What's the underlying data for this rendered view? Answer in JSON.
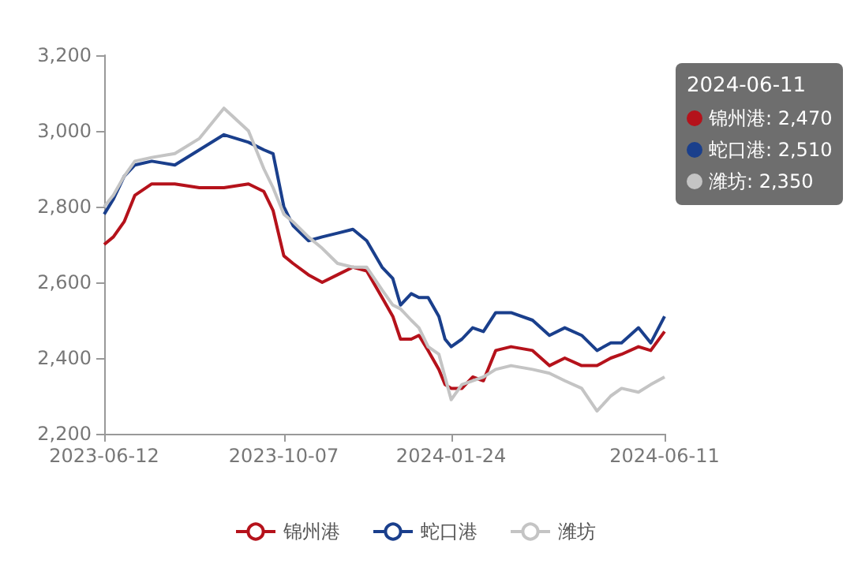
{
  "chart_data": {
    "type": "line",
    "x": [
      "2023-06-12",
      "2023-06-18",
      "2023-06-25",
      "2023-07-02",
      "2023-07-13",
      "2023-07-28",
      "2023-08-13",
      "2023-08-29",
      "2023-09-14",
      "2023-09-24",
      "2023-09-30",
      "2023-10-07",
      "2023-10-13",
      "2023-10-23",
      "2023-11-01",
      "2023-11-11",
      "2023-11-21",
      "2023-11-30",
      "2023-12-10",
      "2023-12-17",
      "2023-12-22",
      "2023-12-29",
      "2024-01-03",
      "2024-01-09",
      "2024-01-16",
      "2024-01-20",
      "2024-01-24",
      "2024-01-31",
      "2024-02-07",
      "2024-02-14",
      "2024-02-22",
      "2024-03-03",
      "2024-03-17",
      "2024-03-28",
      "2024-04-07",
      "2024-04-18",
      "2024-04-28",
      "2024-05-07",
      "2024-05-14",
      "2024-05-25",
      "2024-06-02",
      "2024-06-11"
    ],
    "series": [
      {
        "name": "锦州港",
        "color": "#b5121b",
        "values": [
          2700,
          2720,
          2760,
          2830,
          2860,
          2860,
          2850,
          2850,
          2860,
          2840,
          2790,
          2670,
          2650,
          2620,
          2600,
          2620,
          2640,
          2630,
          2560,
          2510,
          2450,
          2450,
          2460,
          2420,
          2370,
          2330,
          2320,
          2320,
          2350,
          2340,
          2420,
          2430,
          2420,
          2380,
          2400,
          2380,
          2380,
          2400,
          2410,
          2430,
          2420,
          2470
        ]
      },
      {
        "name": "蛇口港",
        "color": "#1a3f8c",
        "values": [
          2780,
          2820,
          2880,
          2910,
          2920,
          2910,
          2950,
          2990,
          2970,
          2950,
          2940,
          2800,
          2750,
          2710,
          2720,
          2730,
          2740,
          2710,
          2640,
          2610,
          2540,
          2570,
          2560,
          2560,
          2510,
          2450,
          2430,
          2450,
          2480,
          2470,
          2520,
          2520,
          2500,
          2460,
          2480,
          2460,
          2420,
          2440,
          2440,
          2480,
          2440,
          2510
        ]
      },
      {
        "name": "潍坊",
        "color": "#c4c4c4",
        "values": [
          2800,
          2830,
          2880,
          2920,
          2930,
          2940,
          2980,
          3060,
          3000,
          2900,
          2850,
          2780,
          2760,
          2720,
          2690,
          2650,
          2640,
          2640,
          2580,
          2540,
          2530,
          2500,
          2480,
          2430,
          2410,
          2350,
          2290,
          2330,
          2340,
          2350,
          2370,
          2380,
          2370,
          2360,
          2340,
          2320,
          2260,
          2300,
          2320,
          2310,
          2330,
          2350
        ]
      }
    ],
    "xlim": [
      "2023-06-12",
      "2024-06-11"
    ],
    "xticks": [
      "2023-06-12",
      "2023-10-07",
      "2024-01-24",
      "2024-06-11"
    ],
    "ylim": [
      2200,
      3200
    ],
    "yticks": [
      {
        "value": 2200,
        "label": "2,200"
      },
      {
        "value": 2400,
        "label": "2,400"
      },
      {
        "value": 2600,
        "label": "2,600"
      },
      {
        "value": 2800,
        "label": "2,800"
      },
      {
        "value": 3000,
        "label": "3,000"
      },
      {
        "value": 3200,
        "label": "3,200"
      }
    ],
    "grid": false,
    "legend": "bottom",
    "marker": "none",
    "line_style": "solid",
    "annotations": [
      "2024-06-11",
      "锦州港: 2,470",
      "蛇口港: 2,510",
      "潍坊: 2,350"
    ]
  }
}
